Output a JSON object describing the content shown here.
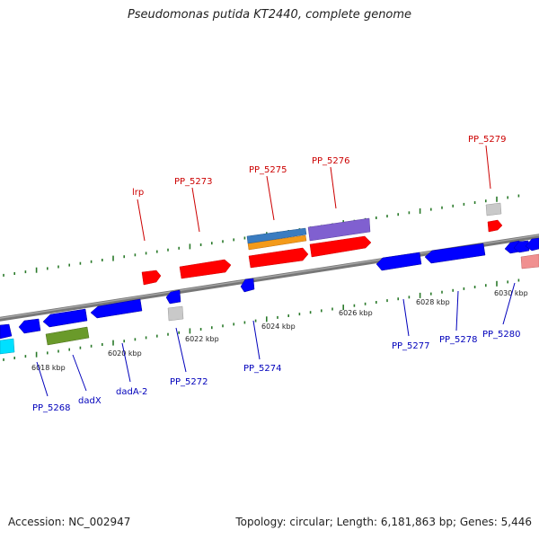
{
  "title": "Pseudomonas putida KT2440, complete genome",
  "footer": {
    "accession": "Accession: NC_002947",
    "summary": "Topology: circular; Length: 6,181,863 bp; Genes: 5,446"
  },
  "colors": {
    "backbone": "#7a7a7a",
    "tick": "#2a7a2a",
    "forward_label": "#cc0000",
    "reverse_label": "#0000bb",
    "forward_gene": "#ff0000",
    "reverse_gene": "#0000ff"
  },
  "ticks": [
    "6018 kbp",
    "6020 kbp",
    "6022 kbp",
    "6024 kbp",
    "6026 kbp",
    "6028 kbp",
    "6030 kbp"
  ],
  "forward_labels": [
    "lrp",
    "PP_5273",
    "PP_5275",
    "PP_5276",
    "PP_5279"
  ],
  "reverse_labels": [
    "PP_5268",
    "dadX",
    "dadA-2",
    "PP_5272",
    "PP_5274",
    "PP_5277",
    "PP_5278",
    "PP_5280"
  ]
}
